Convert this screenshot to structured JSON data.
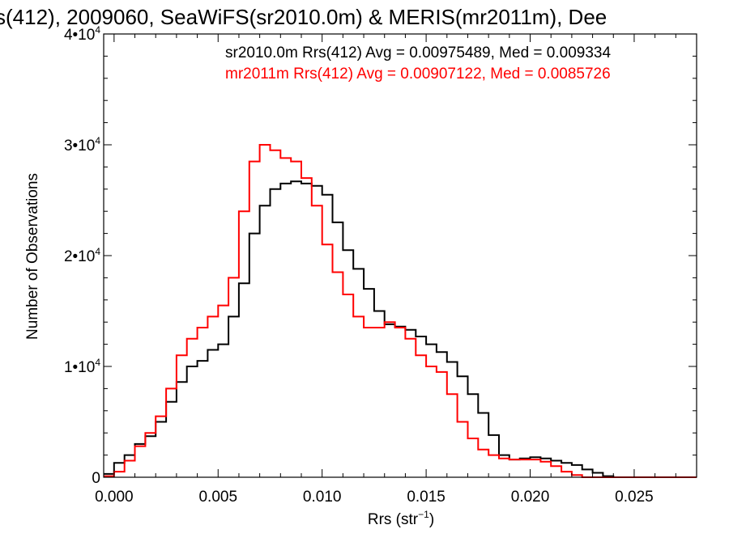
{
  "chart_data": {
    "type": "line",
    "title": "s(412), 2009060, SeaWiFS(sr2010.0m) & MERIS(mr2011m), Dee",
    "xlabel": "Rrs (str",
    "xlabel_sup": "−1",
    "xlabel_close": ")",
    "ylabel": "Number of Observations",
    "xlim": [
      -0.0005,
      0.028
    ],
    "ylim": [
      0,
      40000
    ],
    "x_ticks": [
      {
        "value": 0.0,
        "label": "0.000"
      },
      {
        "value": 0.005,
        "label": "0.005"
      },
      {
        "value": 0.01,
        "label": "0.010"
      },
      {
        "value": 0.015,
        "label": "0.015"
      },
      {
        "value": 0.02,
        "label": "0.020"
      },
      {
        "value": 0.025,
        "label": "0.025"
      }
    ],
    "y_ticks": [
      {
        "value": 0,
        "base": "0",
        "exp": ""
      },
      {
        "value": 10000,
        "base": "1•10",
        "exp": "4"
      },
      {
        "value": 20000,
        "base": "2•10",
        "exp": "4"
      },
      {
        "value": 30000,
        "base": "3•10",
        "exp": "4"
      },
      {
        "value": 40000,
        "base": "4•10",
        "exp": "4"
      }
    ],
    "annotations": [
      {
        "text": "sr2010.0m Rrs(412) Avg = 0.00975489, Med = 0.009334",
        "color": "#000000"
      },
      {
        "text": "mr2011m Rrs(412) Avg = 0.00907122, Med = 0.0085726",
        "color": "#ff0000"
      }
    ],
    "series": [
      {
        "color": "#000000",
        "x": [
          -0.0005,
          0.0,
          0.0005,
          0.001,
          0.0015,
          0.002,
          0.0025,
          0.003,
          0.0035,
          0.004,
          0.0045,
          0.005,
          0.0055,
          0.006,
          0.0065,
          0.007,
          0.0075,
          0.008,
          0.0085,
          0.009,
          0.0095,
          0.01,
          0.0105,
          0.011,
          0.0115,
          0.012,
          0.0125,
          0.013,
          0.0135,
          0.014,
          0.0145,
          0.015,
          0.0155,
          0.016,
          0.0165,
          0.017,
          0.0175,
          0.018,
          0.0185,
          0.019,
          0.0195,
          0.02,
          0.0205,
          0.021,
          0.0215,
          0.022,
          0.0225,
          0.023,
          0.0235,
          0.024,
          0.0245,
          0.025,
          0.028
        ],
        "y": [
          300,
          1300,
          2000,
          3000,
          3700,
          5000,
          6800,
          8600,
          10000,
          10500,
          11500,
          12000,
          14500,
          17500,
          22000,
          24500,
          26000,
          26500,
          26700,
          26500,
          26300,
          25500,
          23000,
          20500,
          18800,
          17000,
          15000,
          13800,
          13600,
          13300,
          12700,
          12000,
          11300,
          10400,
          9100,
          7500,
          5800,
          3800,
          2000,
          1600,
          1700,
          1800,
          1700,
          1500,
          1300,
          1100,
          700,
          400,
          100,
          0,
          0,
          0,
          0
        ]
      },
      {
        "color": "#ff0000",
        "x": [
          -0.0005,
          0.0,
          0.0005,
          0.001,
          0.0015,
          0.002,
          0.0025,
          0.003,
          0.0035,
          0.004,
          0.0045,
          0.005,
          0.0055,
          0.006,
          0.0065,
          0.007,
          0.0075,
          0.008,
          0.0085,
          0.009,
          0.0095,
          0.01,
          0.0105,
          0.011,
          0.0115,
          0.012,
          0.0125,
          0.013,
          0.0135,
          0.014,
          0.0145,
          0.015,
          0.0155,
          0.016,
          0.0165,
          0.017,
          0.0175,
          0.018,
          0.0185,
          0.019,
          0.0195,
          0.02,
          0.0205,
          0.021,
          0.0215,
          0.022,
          0.0225,
          0.023,
          0.0235,
          0.024,
          0.0245,
          0.025,
          0.028
        ],
        "y": [
          100,
          500,
          1500,
          2800,
          4000,
          5500,
          8000,
          11000,
          12500,
          13500,
          14500,
          15500,
          18000,
          24000,
          28500,
          30000,
          29500,
          28800,
          28500,
          27000,
          24500,
          21000,
          18500,
          16500,
          14500,
          13500,
          13500,
          14000,
          13500,
          12500,
          11000,
          10000,
          9500,
          7500,
          5000,
          3500,
          2500,
          2000,
          1700,
          1600,
          1600,
          1600,
          1400,
          1000,
          500,
          200,
          0,
          0,
          0,
          0,
          0,
          0,
          0
        ]
      }
    ]
  }
}
